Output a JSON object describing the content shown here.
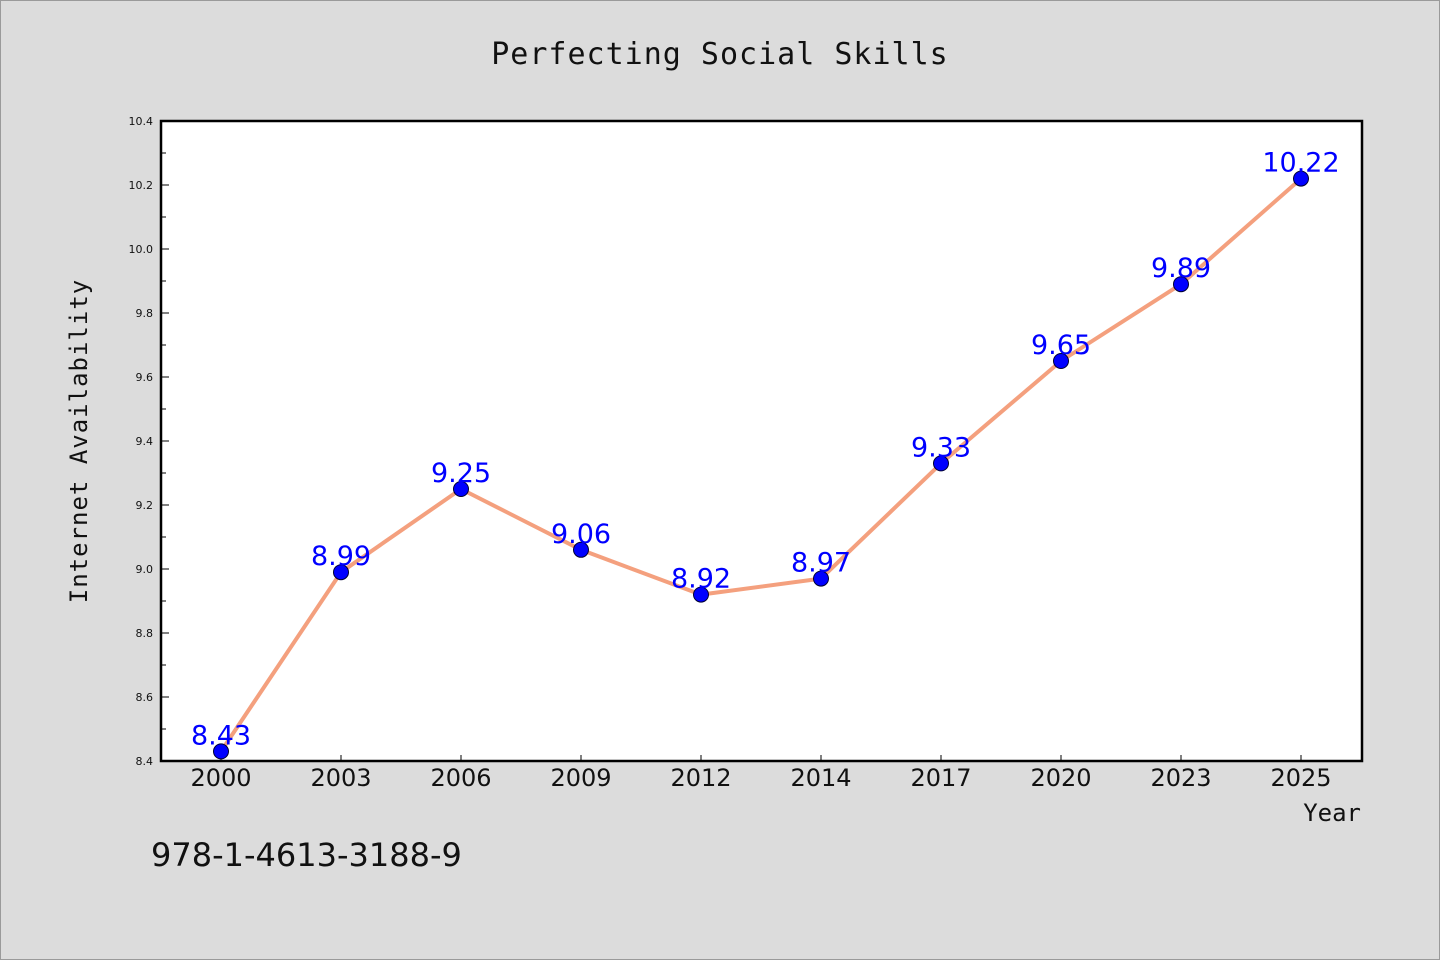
{
  "chart_data": {
    "type": "line",
    "title": "Perfecting Social Skills",
    "xlabel": "Year",
    "ylabel": "Internet Availability",
    "categories": [
      "2000",
      "2003",
      "2006",
      "2009",
      "2012",
      "2014",
      "2017",
      "2020",
      "2023",
      "2025"
    ],
    "values": [
      8.43,
      8.99,
      9.25,
      9.06,
      8.92,
      8.97,
      9.33,
      9.65,
      9.89,
      10.22
    ],
    "data_labels": [
      "8.43",
      "8.99",
      "9.25",
      "9.06",
      "8.92",
      "8.97",
      "9.33",
      "9.65",
      "9.89",
      "10.22"
    ],
    "ylim": [
      8.4,
      10.4
    ],
    "yticks": [
      8.4,
      8.6,
      8.8,
      9.0,
      9.2,
      9.4,
      9.6,
      9.8,
      10.0,
      10.2,
      10.4
    ],
    "ytick_labels": [
      "8.4",
      "8.6",
      "8.8",
      "9.0",
      "9.2",
      "9.4",
      "9.6",
      "9.8",
      "10.0",
      "10.2",
      "10.4"
    ],
    "line_color": "#f4a07e",
    "marker_color": "#0000ff",
    "label_color": "#0000ff",
    "plot_background": "#ffffff",
    "figure_background": "#dcdcdc",
    "grid": false,
    "legend": "none"
  },
  "footer": {
    "isbn": "978-1-4613-3188-9"
  }
}
